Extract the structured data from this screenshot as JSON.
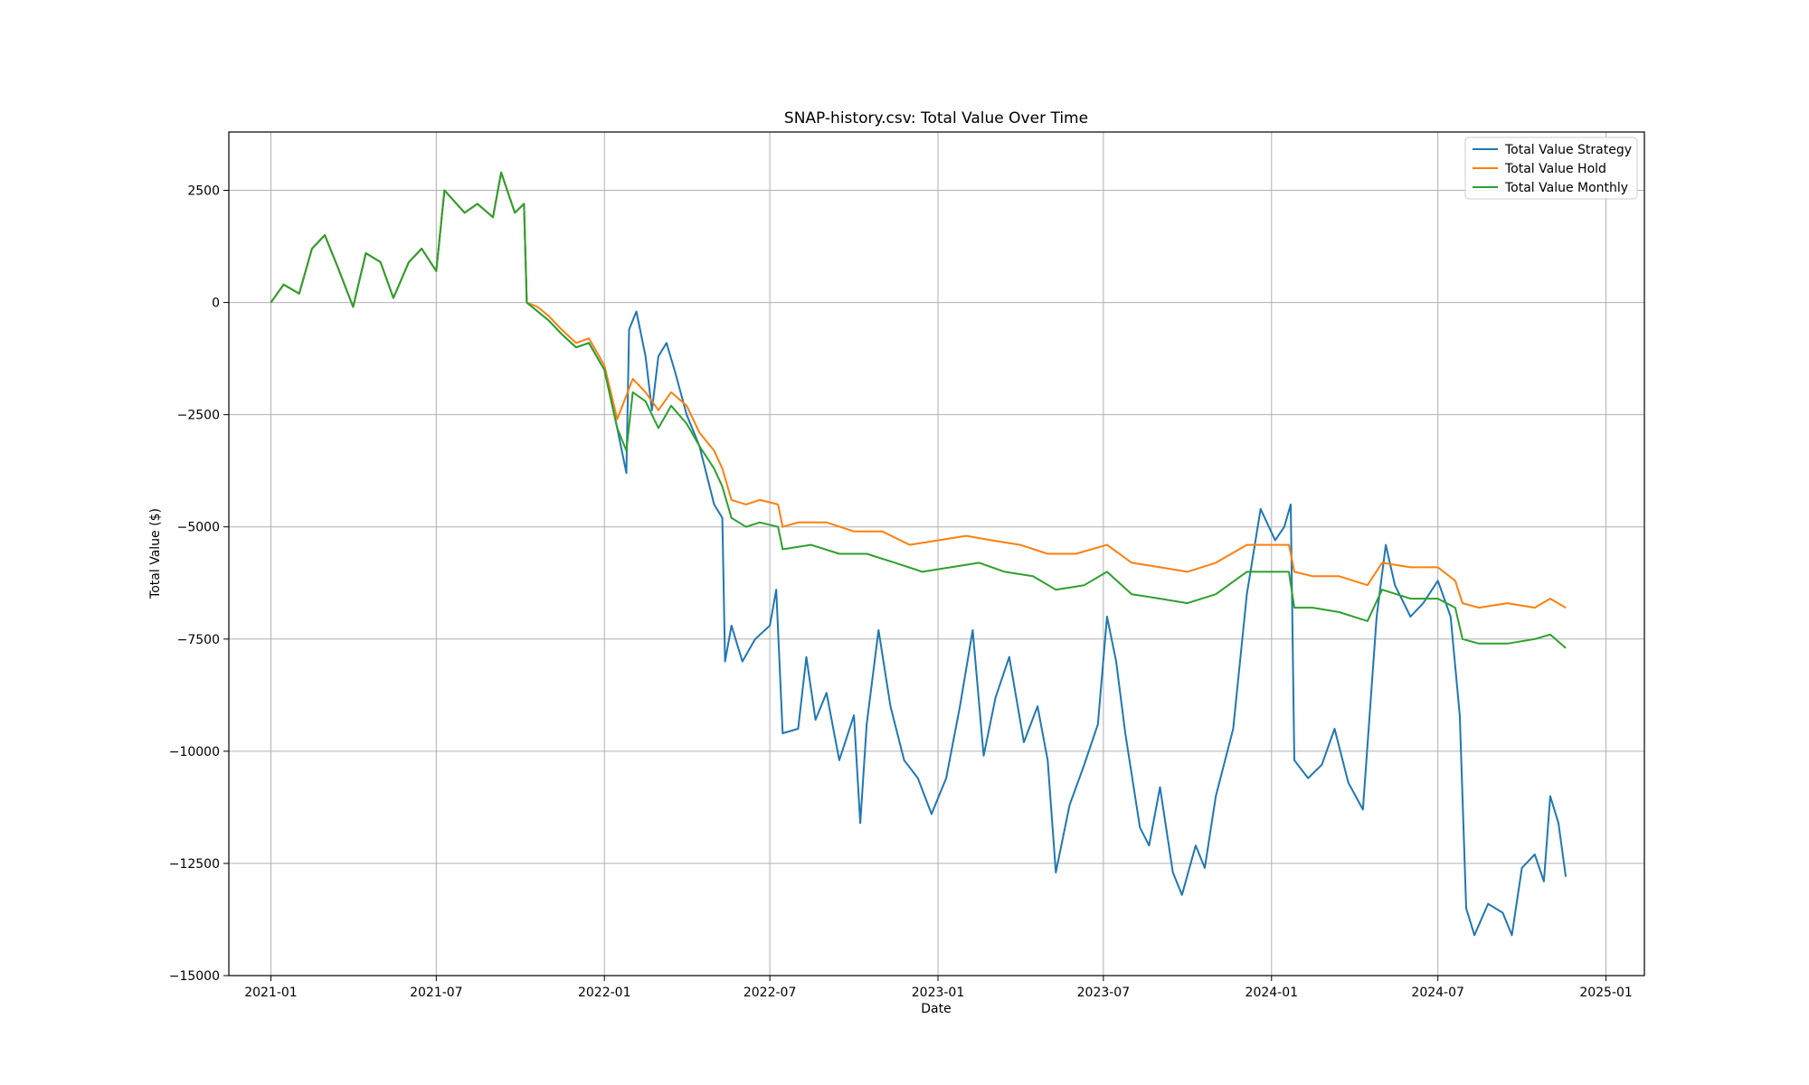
{
  "chart_data": {
    "type": "line",
    "title": "SNAP-history.csv: Total Value Over Time",
    "xlabel": "Date",
    "ylabel": "Total Value ($)",
    "x_ticks": [
      "2021-01",
      "2021-07",
      "2022-01",
      "2022-07",
      "2023-01",
      "2023-07",
      "2024-01",
      "2024-07",
      "2025-01"
    ],
    "y_ticks": [
      2500,
      0,
      -2500,
      -5000,
      -7500,
      -10000,
      -12500,
      -15000
    ],
    "y_tick_labels": [
      "2500",
      "0",
      "−2500",
      "−5000",
      "−7500",
      "−10000",
      "−12500",
      "−15000"
    ],
    "xlim": [
      "2020-11-16",
      "2025-02-12"
    ],
    "ylim": [
      -15000,
      3800
    ],
    "grid": true,
    "legend_position": "upper-right",
    "series": [
      {
        "name": "Total Value Strategy",
        "color": "#1f77b4",
        "points": [
          [
            "2021-01-01",
            0
          ],
          [
            "2021-01-15",
            400
          ],
          [
            "2021-02-01",
            200
          ],
          [
            "2021-02-15",
            1200
          ],
          [
            "2021-03-01",
            1500
          ],
          [
            "2021-03-15",
            800
          ],
          [
            "2021-04-01",
            -100
          ],
          [
            "2021-04-15",
            1100
          ],
          [
            "2021-05-01",
            900
          ],
          [
            "2021-05-15",
            100
          ],
          [
            "2021-06-01",
            900
          ],
          [
            "2021-06-15",
            1200
          ],
          [
            "2021-07-01",
            700
          ],
          [
            "2021-07-10",
            2500
          ],
          [
            "2021-08-01",
            2000
          ],
          [
            "2021-08-15",
            2200
          ],
          [
            "2021-09-01",
            1900
          ],
          [
            "2021-09-10",
            2900
          ],
          [
            "2021-09-25",
            2000
          ],
          [
            "2021-10-05",
            2200
          ],
          [
            "2021-10-08",
            0
          ],
          [
            "2021-10-20",
            -200
          ],
          [
            "2021-11-01",
            -400
          ],
          [
            "2021-11-15",
            -700
          ],
          [
            "2021-12-01",
            -1000
          ],
          [
            "2021-12-15",
            -900
          ],
          [
            "2022-01-01",
            -1500
          ],
          [
            "2022-01-15",
            -2800
          ],
          [
            "2022-01-25",
            -3800
          ],
          [
            "2022-01-28",
            -600
          ],
          [
            "2022-02-05",
            -200
          ],
          [
            "2022-02-15",
            -1200
          ],
          [
            "2022-02-22",
            -2400
          ],
          [
            "2022-03-01",
            -1200
          ],
          [
            "2022-03-10",
            -900
          ],
          [
            "2022-03-20",
            -1600
          ],
          [
            "2022-04-01",
            -2500
          ],
          [
            "2022-04-15",
            -3200
          ],
          [
            "2022-05-01",
            -4500
          ],
          [
            "2022-05-10",
            -4800
          ],
          [
            "2022-05-13",
            -8000
          ],
          [
            "2022-05-20",
            -7200
          ],
          [
            "2022-06-01",
            -8000
          ],
          [
            "2022-06-15",
            -7500
          ],
          [
            "2022-07-01",
            -7200
          ],
          [
            "2022-07-08",
            -6400
          ],
          [
            "2022-07-15",
            -9600
          ],
          [
            "2022-08-01",
            -9500
          ],
          [
            "2022-08-10",
            -7900
          ],
          [
            "2022-08-20",
            -9300
          ],
          [
            "2022-09-01",
            -8700
          ],
          [
            "2022-09-15",
            -10200
          ],
          [
            "2022-10-01",
            -9200
          ],
          [
            "2022-10-08",
            -11600
          ],
          [
            "2022-10-15",
            -9400
          ],
          [
            "2022-10-28",
            -7300
          ],
          [
            "2022-11-10",
            -9000
          ],
          [
            "2022-11-25",
            -10200
          ],
          [
            "2022-12-10",
            -10600
          ],
          [
            "2022-12-25",
            -11400
          ],
          [
            "2023-01-10",
            -10600
          ],
          [
            "2023-01-25",
            -9000
          ],
          [
            "2023-02-08",
            -7300
          ],
          [
            "2023-02-20",
            -10100
          ],
          [
            "2023-03-05",
            -8800
          ],
          [
            "2023-03-20",
            -7900
          ],
          [
            "2023-04-05",
            -9800
          ],
          [
            "2023-04-20",
            -9000
          ],
          [
            "2023-05-01",
            -10200
          ],
          [
            "2023-05-10",
            -12700
          ],
          [
            "2023-05-25",
            -11200
          ],
          [
            "2023-06-10",
            -10300
          ],
          [
            "2023-06-25",
            -9400
          ],
          [
            "2023-07-05",
            -7000
          ],
          [
            "2023-07-15",
            -8000
          ],
          [
            "2023-07-25",
            -9600
          ],
          [
            "2023-08-10",
            -11700
          ],
          [
            "2023-08-20",
            -12100
          ],
          [
            "2023-09-01",
            -10800
          ],
          [
            "2023-09-15",
            -12700
          ],
          [
            "2023-09-25",
            -13200
          ],
          [
            "2023-10-10",
            -12100
          ],
          [
            "2023-10-20",
            -12600
          ],
          [
            "2023-11-01",
            -11000
          ],
          [
            "2023-11-20",
            -9500
          ],
          [
            "2023-12-05",
            -6500
          ],
          [
            "2023-12-20",
            -4600
          ],
          [
            "2024-01-05",
            -5300
          ],
          [
            "2024-01-15",
            -5000
          ],
          [
            "2024-01-22",
            -4500
          ],
          [
            "2024-01-26",
            -10200
          ],
          [
            "2024-02-10",
            -10600
          ],
          [
            "2024-02-25",
            -10300
          ],
          [
            "2024-03-10",
            -9500
          ],
          [
            "2024-03-25",
            -10700
          ],
          [
            "2024-04-10",
            -11300
          ],
          [
            "2024-04-25",
            -7000
          ],
          [
            "2024-05-05",
            -5400
          ],
          [
            "2024-05-15",
            -6300
          ],
          [
            "2024-06-01",
            -7000
          ],
          [
            "2024-06-15",
            -6700
          ],
          [
            "2024-07-01",
            -6200
          ],
          [
            "2024-07-15",
            -7000
          ],
          [
            "2024-07-25",
            -9200
          ],
          [
            "2024-08-01",
            -13500
          ],
          [
            "2024-08-10",
            -14100
          ],
          [
            "2024-08-25",
            -13400
          ],
          [
            "2024-09-10",
            -13600
          ],
          [
            "2024-09-20",
            -14100
          ],
          [
            "2024-10-01",
            -12600
          ],
          [
            "2024-10-15",
            -12300
          ],
          [
            "2024-10-25",
            -12900
          ],
          [
            "2024-11-01",
            -11000
          ],
          [
            "2024-11-10",
            -11600
          ],
          [
            "2024-11-18",
            -12800
          ]
        ]
      },
      {
        "name": "Total Value Hold",
        "color": "#ff7f0e",
        "points": [
          [
            "2021-01-01",
            0
          ],
          [
            "2021-01-15",
            400
          ],
          [
            "2021-02-01",
            200
          ],
          [
            "2021-02-15",
            1200
          ],
          [
            "2021-03-01",
            1500
          ],
          [
            "2021-03-15",
            800
          ],
          [
            "2021-04-01",
            -100
          ],
          [
            "2021-04-15",
            1100
          ],
          [
            "2021-05-01",
            900
          ],
          [
            "2021-05-15",
            100
          ],
          [
            "2021-06-01",
            900
          ],
          [
            "2021-06-15",
            1200
          ],
          [
            "2021-07-01",
            700
          ],
          [
            "2021-07-10",
            2500
          ],
          [
            "2021-08-01",
            2000
          ],
          [
            "2021-08-15",
            2200
          ],
          [
            "2021-09-01",
            1900
          ],
          [
            "2021-09-10",
            2900
          ],
          [
            "2021-09-25",
            2000
          ],
          [
            "2021-10-05",
            2200
          ],
          [
            "2021-10-08",
            0
          ],
          [
            "2021-10-20",
            -100
          ],
          [
            "2021-11-01",
            -300
          ],
          [
            "2021-11-15",
            -600
          ],
          [
            "2021-12-01",
            -900
          ],
          [
            "2021-12-15",
            -800
          ],
          [
            "2022-01-01",
            -1400
          ],
          [
            "2022-01-15",
            -2600
          ],
          [
            "2022-02-01",
            -1700
          ],
          [
            "2022-02-15",
            -2000
          ],
          [
            "2022-03-01",
            -2400
          ],
          [
            "2022-03-15",
            -2000
          ],
          [
            "2022-04-01",
            -2300
          ],
          [
            "2022-04-15",
            -2900
          ],
          [
            "2022-05-01",
            -3300
          ],
          [
            "2022-05-10",
            -3700
          ],
          [
            "2022-05-20",
            -4400
          ],
          [
            "2022-06-05",
            -4500
          ],
          [
            "2022-06-20",
            -4400
          ],
          [
            "2022-07-10",
            -4500
          ],
          [
            "2022-07-15",
            -5000
          ],
          [
            "2022-08-01",
            -4900
          ],
          [
            "2022-09-01",
            -4900
          ],
          [
            "2022-10-01",
            -5100
          ],
          [
            "2022-11-01",
            -5100
          ],
          [
            "2022-12-01",
            -5400
          ],
          [
            "2023-01-01",
            -5300
          ],
          [
            "2023-02-01",
            -5200
          ],
          [
            "2023-03-01",
            -5300
          ],
          [
            "2023-04-01",
            -5400
          ],
          [
            "2023-05-01",
            -5600
          ],
          [
            "2023-06-01",
            -5600
          ],
          [
            "2023-07-05",
            -5400
          ],
          [
            "2023-08-01",
            -5800
          ],
          [
            "2023-09-01",
            -5900
          ],
          [
            "2023-10-01",
            -6000
          ],
          [
            "2023-11-01",
            -5800
          ],
          [
            "2023-12-05",
            -5400
          ],
          [
            "2024-01-20",
            -5400
          ],
          [
            "2024-01-26",
            -6000
          ],
          [
            "2024-02-15",
            -6100
          ],
          [
            "2024-03-15",
            -6100
          ],
          [
            "2024-04-15",
            -6300
          ],
          [
            "2024-05-01",
            -5800
          ],
          [
            "2024-06-01",
            -5900
          ],
          [
            "2024-07-01",
            -5900
          ],
          [
            "2024-07-20",
            -6200
          ],
          [
            "2024-07-28",
            -6700
          ],
          [
            "2024-08-15",
            -6800
          ],
          [
            "2024-09-15",
            -6700
          ],
          [
            "2024-10-15",
            -6800
          ],
          [
            "2024-11-01",
            -6600
          ],
          [
            "2024-11-18",
            -6800
          ]
        ]
      },
      {
        "name": "Total Value Monthly",
        "color": "#2ca02c",
        "points": [
          [
            "2021-01-01",
            0
          ],
          [
            "2021-01-15",
            400
          ],
          [
            "2021-02-01",
            200
          ],
          [
            "2021-02-15",
            1200
          ],
          [
            "2021-03-01",
            1500
          ],
          [
            "2021-03-15",
            800
          ],
          [
            "2021-04-01",
            -100
          ],
          [
            "2021-04-15",
            1100
          ],
          [
            "2021-05-01",
            900
          ],
          [
            "2021-05-15",
            100
          ],
          [
            "2021-06-01",
            900
          ],
          [
            "2021-06-15",
            1200
          ],
          [
            "2021-07-01",
            700
          ],
          [
            "2021-07-10",
            2500
          ],
          [
            "2021-08-01",
            2000
          ],
          [
            "2021-08-15",
            2200
          ],
          [
            "2021-09-01",
            1900
          ],
          [
            "2021-09-10",
            2900
          ],
          [
            "2021-09-25",
            2000
          ],
          [
            "2021-10-05",
            2200
          ],
          [
            "2021-10-08",
            0
          ],
          [
            "2021-10-20",
            -200
          ],
          [
            "2021-11-01",
            -400
          ],
          [
            "2021-11-15",
            -700
          ],
          [
            "2021-12-01",
            -1000
          ],
          [
            "2021-12-15",
            -900
          ],
          [
            "2022-01-01",
            -1500
          ],
          [
            "2022-01-15",
            -2800
          ],
          [
            "2022-01-25",
            -3300
          ],
          [
            "2022-02-01",
            -2000
          ],
          [
            "2022-02-15",
            -2200
          ],
          [
            "2022-03-01",
            -2800
          ],
          [
            "2022-03-15",
            -2300
          ],
          [
            "2022-04-01",
            -2700
          ],
          [
            "2022-04-15",
            -3200
          ],
          [
            "2022-05-01",
            -3700
          ],
          [
            "2022-05-10",
            -4100
          ],
          [
            "2022-05-20",
            -4800
          ],
          [
            "2022-06-05",
            -5000
          ],
          [
            "2022-06-20",
            -4900
          ],
          [
            "2022-07-10",
            -5000
          ],
          [
            "2022-07-15",
            -5500
          ],
          [
            "2022-08-15",
            -5400
          ],
          [
            "2022-09-15",
            -5600
          ],
          [
            "2022-10-15",
            -5600
          ],
          [
            "2022-11-15",
            -5800
          ],
          [
            "2022-12-15",
            -6000
          ],
          [
            "2023-01-15",
            -5900
          ],
          [
            "2023-02-15",
            -5800
          ],
          [
            "2023-03-15",
            -6000
          ],
          [
            "2023-04-15",
            -6100
          ],
          [
            "2023-05-10",
            -6400
          ],
          [
            "2023-06-10",
            -6300
          ],
          [
            "2023-07-05",
            -6000
          ],
          [
            "2023-08-01",
            -6500
          ],
          [
            "2023-09-01",
            -6600
          ],
          [
            "2023-10-01",
            -6700
          ],
          [
            "2023-11-01",
            -6500
          ],
          [
            "2023-12-05",
            -6000
          ],
          [
            "2024-01-20",
            -6000
          ],
          [
            "2024-01-26",
            -6800
          ],
          [
            "2024-02-15",
            -6800
          ],
          [
            "2024-03-15",
            -6900
          ],
          [
            "2024-04-15",
            -7100
          ],
          [
            "2024-05-01",
            -6400
          ],
          [
            "2024-06-01",
            -6600
          ],
          [
            "2024-07-01",
            -6600
          ],
          [
            "2024-07-20",
            -6800
          ],
          [
            "2024-07-28",
            -7500
          ],
          [
            "2024-08-15",
            -7600
          ],
          [
            "2024-09-15",
            -7600
          ],
          [
            "2024-10-15",
            -7500
          ],
          [
            "2024-11-01",
            -7400
          ],
          [
            "2024-11-18",
            -7700
          ]
        ]
      }
    ]
  }
}
